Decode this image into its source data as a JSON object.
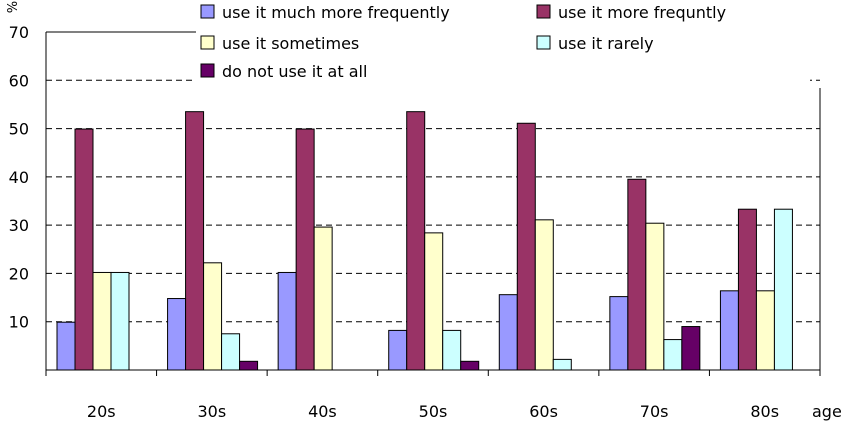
{
  "chart_data": {
    "type": "bar",
    "title": "",
    "xlabel": "age",
    "ylabel": "%",
    "ylim": [
      0,
      70
    ],
    "yticks": [
      0,
      10,
      20,
      30,
      40,
      50,
      60,
      70
    ],
    "grid": "horizontal dashed",
    "legend_position": "top",
    "categories": [
      "20s",
      "30s",
      "40s",
      "50s",
      "60s",
      "70s",
      "80s"
    ],
    "series": [
      {
        "name": "use it much more frequently",
        "color": "#9999ff",
        "values": [
          9.9,
          14.8,
          20.2,
          8.2,
          15.6,
          15.2,
          16.4
        ]
      },
      {
        "name": "use it more frequntly",
        "color": "#993366",
        "values": [
          49.9,
          53.5,
          49.9,
          53.5,
          51.1,
          39.5,
          33.3
        ]
      },
      {
        "name": "use it sometimes",
        "color": "#ffffcc",
        "values": [
          20.2,
          22.2,
          29.6,
          28.4,
          31.1,
          30.4,
          16.4
        ]
      },
      {
        "name": "use it rarely",
        "color": "#ccffff",
        "values": [
          20.2,
          7.5,
          0,
          8.2,
          2.2,
          6.3,
          33.3
        ]
      },
      {
        "name": "do not use it at all",
        "color": "#660066",
        "values": [
          0,
          1.8,
          0,
          1.8,
          0,
          9.0,
          0
        ]
      }
    ]
  }
}
